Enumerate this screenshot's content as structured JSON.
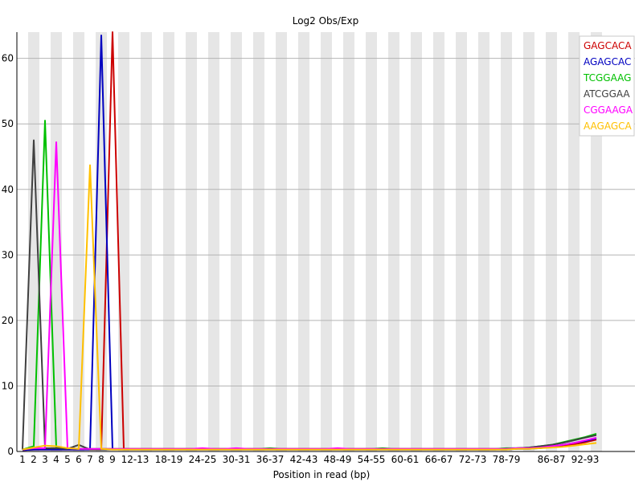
{
  "chart_data": {
    "type": "line",
    "title": "Log2 Obs/Exp",
    "xlabel": "Position in read (bp)",
    "ylabel": "",
    "ylim": [
      0,
      64
    ],
    "yticks": [
      0,
      10,
      20,
      30,
      40,
      50,
      60
    ],
    "categories": [
      "1",
      "2",
      "3",
      "4",
      "5",
      "6",
      "7",
      "8",
      "9",
      "10-11",
      "12-13",
      "14-15",
      "16-17",
      "18-19",
      "20-21",
      "22-23",
      "24-25",
      "26-27",
      "28-29",
      "30-31",
      "32-33",
      "34-35",
      "36-37",
      "38-39",
      "40-41",
      "42-43",
      "44-45",
      "46-47",
      "48-49",
      "50-51",
      "52-53",
      "54-55",
      "56-57",
      "58-59",
      "60-61",
      "62-63",
      "64-65",
      "66-67",
      "68-69",
      "70-71",
      "72-73",
      "74-75",
      "76-77",
      "78-79",
      "80-81",
      "82-83",
      "84-85",
      "86-87",
      "88-89",
      "90-91",
      "92-93",
      "94-95"
    ],
    "x_tick_labels": [
      "1",
      "2",
      "3",
      "4",
      "5",
      "6",
      "7",
      "8",
      "9",
      "12-13",
      "18-19",
      "24-25",
      "30-31",
      "36-37",
      "42-43",
      "48-49",
      "54-55",
      "60-61",
      "66-67",
      "72-73",
      "78-79",
      "86-87",
      "92-93"
    ],
    "grid": "horizontal",
    "legend_position": "top-right",
    "series": [
      {
        "name": "GAGCACA",
        "color": "#cc0000",
        "values": [
          0.2,
          0.3,
          0.3,
          0.3,
          0.3,
          0.3,
          0.3,
          0.3,
          64,
          0.4,
          0.4,
          0.4,
          0.4,
          0.4,
          0.4,
          0.4,
          0.4,
          0.4,
          0.4,
          0.4,
          0.4,
          0.4,
          0.4,
          0.4,
          0.4,
          0.4,
          0.4,
          0.4,
          0.4,
          0.4,
          0.4,
          0.4,
          0.4,
          0.4,
          0.4,
          0.4,
          0.4,
          0.4,
          0.4,
          0.4,
          0.4,
          0.4,
          0.4,
          0.4,
          0.5,
          0.5,
          0.6,
          0.7,
          0.9,
          1.1,
          1.4,
          1.8
        ]
      },
      {
        "name": "AGAGCAC",
        "color": "#0000c0",
        "values": [
          0.2,
          0.3,
          0.3,
          0.3,
          0.3,
          0.3,
          0.3,
          63.5,
          0.4,
          0.3,
          0.3,
          0.3,
          0.3,
          0.3,
          0.3,
          0.3,
          0.3,
          0.3,
          0.3,
          0.3,
          0.3,
          0.3,
          0.3,
          0.3,
          0.3,
          0.3,
          0.3,
          0.3,
          0.3,
          0.3,
          0.3,
          0.3,
          0.3,
          0.3,
          0.3,
          0.3,
          0.3,
          0.3,
          0.3,
          0.3,
          0.3,
          0.3,
          0.3,
          0.3,
          0.4,
          0.4,
          0.5,
          0.7,
          1.0,
          1.3,
          1.6,
          2.0
        ]
      },
      {
        "name": "TCGGAAG",
        "color": "#00c000",
        "values": [
          0.3,
          0.8,
          50.5,
          0.6,
          0.5,
          0.4,
          0.4,
          0.4,
          0.4,
          0.4,
          0.4,
          0.4,
          0.4,
          0.4,
          0.4,
          0.4,
          0.4,
          0.4,
          0.4,
          0.4,
          0.4,
          0.4,
          0.5,
          0.4,
          0.4,
          0.4,
          0.4,
          0.4,
          0.4,
          0.4,
          0.4,
          0.4,
          0.5,
          0.4,
          0.4,
          0.4,
          0.4,
          0.4,
          0.4,
          0.4,
          0.4,
          0.4,
          0.4,
          0.5,
          0.5,
          0.6,
          0.8,
          1.0,
          1.4,
          1.8,
          2.2,
          2.7
        ]
      },
      {
        "name": "ATCGGAA",
        "color": "#404040",
        "values": [
          0.3,
          47.5,
          0.5,
          0.5,
          0.4,
          1.0,
          0.3,
          0.3,
          0.3,
          0.3,
          0.3,
          0.3,
          0.3,
          0.3,
          0.3,
          0.3,
          0.3,
          0.3,
          0.3,
          0.3,
          0.3,
          0.3,
          0.3,
          0.3,
          0.3,
          0.3,
          0.3,
          0.3,
          0.3,
          0.3,
          0.3,
          0.3,
          0.3,
          0.3,
          0.3,
          0.3,
          0.3,
          0.3,
          0.3,
          0.3,
          0.3,
          0.3,
          0.3,
          0.4,
          0.5,
          0.6,
          0.8,
          1.0,
          1.3,
          1.7,
          2.1,
          2.5
        ]
      },
      {
        "name": "CGGAAGA",
        "color": "#ff00ff",
        "values": [
          0.3,
          0.5,
          0.5,
          47.2,
          0.5,
          0.4,
          0.4,
          0.4,
          0.4,
          0.4,
          0.4,
          0.4,
          0.4,
          0.4,
          0.4,
          0.4,
          0.5,
          0.4,
          0.4,
          0.5,
          0.4,
          0.4,
          0.4,
          0.4,
          0.4,
          0.4,
          0.4,
          0.4,
          0.5,
          0.4,
          0.4,
          0.4,
          0.4,
          0.4,
          0.4,
          0.4,
          0.4,
          0.4,
          0.4,
          0.4,
          0.4,
          0.4,
          0.4,
          0.4,
          0.5,
          0.5,
          0.6,
          0.8,
          1.0,
          1.3,
          1.7,
          2.1
        ]
      },
      {
        "name": "AAGAGCA",
        "color": "#ffc000",
        "values": [
          0.3,
          0.6,
          0.9,
          0.8,
          0.5,
          0.4,
          43.7,
          0.4,
          0.3,
          0.3,
          0.3,
          0.3,
          0.3,
          0.3,
          0.3,
          0.3,
          0.3,
          0.3,
          0.3,
          0.3,
          0.3,
          0.3,
          0.3,
          0.3,
          0.3,
          0.3,
          0.3,
          0.3,
          0.3,
          0.3,
          0.3,
          0.3,
          0.3,
          0.3,
          0.3,
          0.3,
          0.3,
          0.3,
          0.3,
          0.3,
          0.3,
          0.3,
          0.3,
          0.3,
          0.4,
          0.4,
          0.5,
          0.6,
          0.7,
          0.9,
          1.1,
          1.3
        ]
      }
    ]
  }
}
